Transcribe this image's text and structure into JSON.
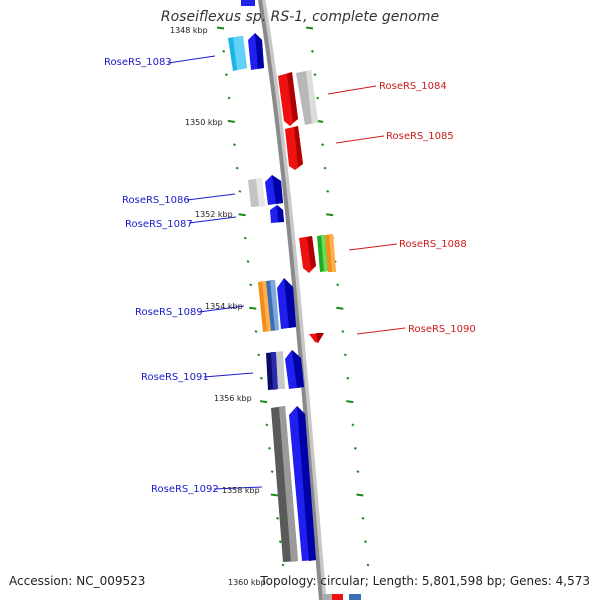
{
  "title": "Roseiflexus sp. RS-1, complete genome",
  "footer": {
    "accession": "Accession: NC_009523",
    "topology": "Topology: circular; Length: 5,801,598 bp; Genes: 4,573"
  },
  "colors": {
    "backbone": "#8a8a8a",
    "tick": "#1a8a1a",
    "left_label": "#1a1acc",
    "right_label": "#cc1a1a"
  },
  "kbp_labels": [
    "1348 kbp",
    "1350 kbp",
    "1352 kbp",
    "1354 kbp",
    "1356 kbp",
    "1358 kbp",
    "1360 kbp"
  ],
  "genes_left": [
    {
      "id": "RoseRS_1083"
    },
    {
      "id": "RoseRS_1086"
    },
    {
      "id": "RoseRS_1087"
    },
    {
      "id": "RoseRS_1089"
    },
    {
      "id": "RoseRS_1091"
    },
    {
      "id": "RoseRS_1092"
    }
  ],
  "genes_right": [
    {
      "id": "RoseRS_1084"
    },
    {
      "id": "RoseRS_1085"
    },
    {
      "id": "RoseRS_1088"
    },
    {
      "id": "RoseRS_1090"
    }
  ]
}
